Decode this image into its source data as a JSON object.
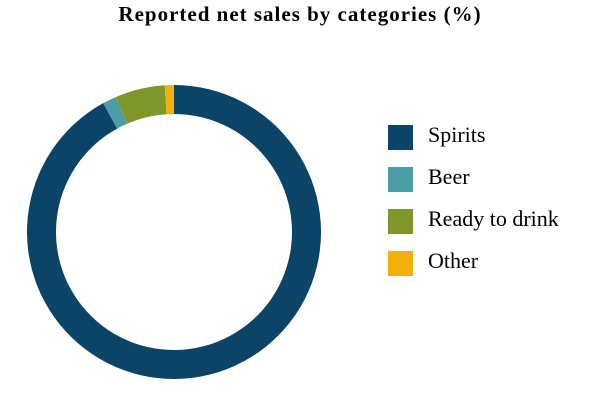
{
  "chart_data": {
    "type": "donut",
    "title": "Reported net sales by categories (%)",
    "categories": [
      "Spirits",
      "Beer",
      "Ready to drink",
      "Other"
    ],
    "values": [
      92,
      1.5,
      5.5,
      1
    ],
    "colors": [
      "#0b4466",
      "#4a9fa6",
      "#7f962a",
      "#f1b10a"
    ],
    "legend": "right"
  }
}
